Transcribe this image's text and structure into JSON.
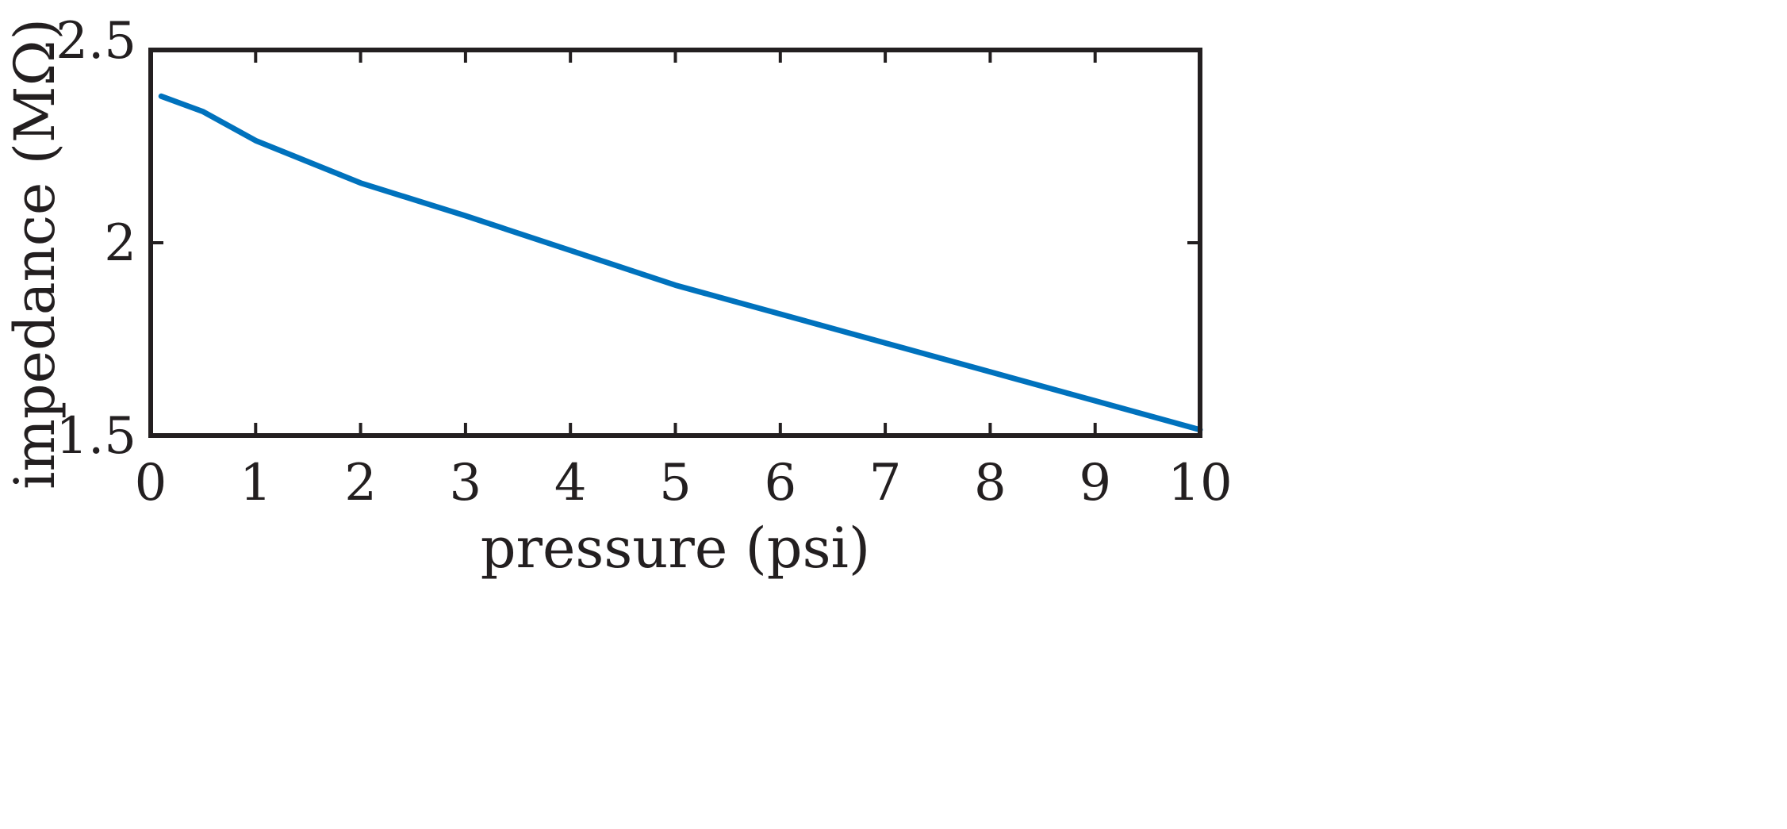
{
  "chart_data": {
    "type": "line",
    "xlabel": "pressure (psi)",
    "ylabel": "impedance (MΩ)",
    "xlim": [
      0,
      10
    ],
    "ylim": [
      1.5,
      2.5
    ],
    "xticks": [
      0,
      1,
      2,
      3,
      4,
      5,
      6,
      7,
      8,
      9,
      10
    ],
    "yticks": [
      1.5,
      2,
      2.5
    ],
    "xtick_labels": [
      "0",
      "1",
      "2",
      "3",
      "4",
      "5",
      "6",
      "7",
      "8",
      "9",
      "10"
    ],
    "ytick_labels": [
      "1.5",
      "2",
      "2.5"
    ],
    "grid": false,
    "series": [
      {
        "color": "#0072bd",
        "x": [
          0.1,
          0.5,
          1,
          2,
          3,
          4,
          5,
          6,
          7,
          8,
          9,
          10
        ],
        "y": [
          2.38,
          2.34,
          2.265,
          2.155,
          2.07,
          1.98,
          1.89,
          1.815,
          1.74,
          1.665,
          1.59,
          1.515
        ]
      }
    ]
  }
}
